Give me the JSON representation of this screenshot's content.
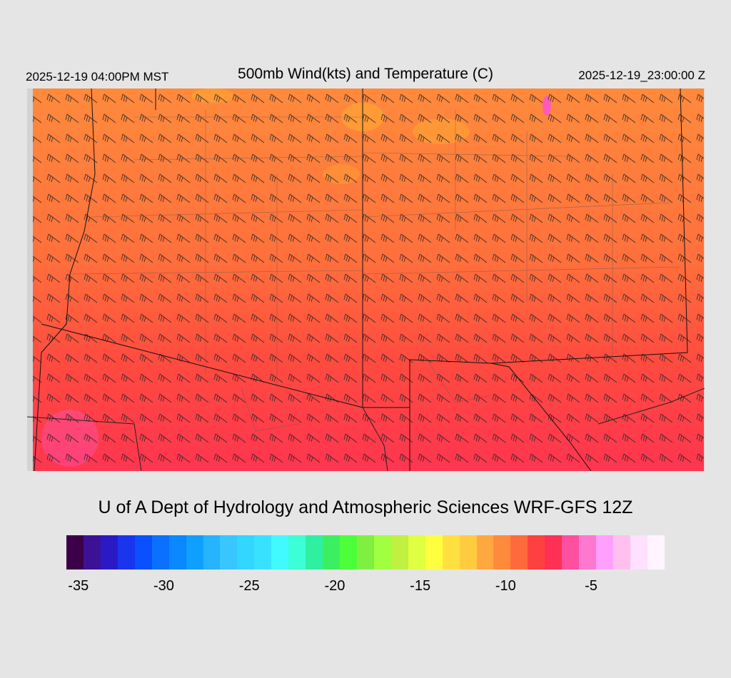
{
  "header": {
    "local_time": "2025-12-19 04:00PM MST",
    "title": "500mb Wind(kts) and Temperature (C)",
    "valid_time": "2025-12-19_23:00:00 Z"
  },
  "map": {
    "field": "500mb temperature (C) with wind barbs (kts)",
    "background_color": "#d3d3d3",
    "temperature_zones": [
      {
        "label": "north",
        "temp_c": -12,
        "color": "#ff8a3c"
      },
      {
        "label": "central",
        "temp_c": -11,
        "color": "#ff6f3c"
      },
      {
        "label": "south",
        "temp_c": -9.5,
        "color": "#ff4a40"
      },
      {
        "label": "far-southwest",
        "temp_c": -8.5,
        "color": "#ff3550"
      }
    ],
    "warm_spot_color": "#ffb030",
    "cold_spot_color": "#ff55c8"
  },
  "credit": "U of A Dept of Hydrology and Atmospheric Sciences WRF-GFS 12Z",
  "colorbar": {
    "colors": [
      "#3c0048",
      "#3c1196",
      "#2c19c6",
      "#1a35ee",
      "#0a50ff",
      "#0a70ff",
      "#0a88ff",
      "#0fa0ff",
      "#26b4ff",
      "#38c6ff",
      "#32d6ff",
      "#38e2ff",
      "#40faff",
      "#3cffd8",
      "#2ef0a0",
      "#3af060",
      "#4cff3a",
      "#80f040",
      "#a0ff40",
      "#c0f040",
      "#e0ff40",
      "#ffff40",
      "#ffe040",
      "#ffcc40",
      "#ffa840",
      "#ff8a3c",
      "#ff6a3c",
      "#ff4040",
      "#ff3054",
      "#ff50a0",
      "#ff78d0",
      "#ffa0ff",
      "#ffc0f0",
      "#ffe0ff",
      "#fff4ff"
    ],
    "labels": [
      "-35",
      "-30",
      "-25",
      "-20",
      "-15",
      "-10",
      "-5"
    ]
  }
}
